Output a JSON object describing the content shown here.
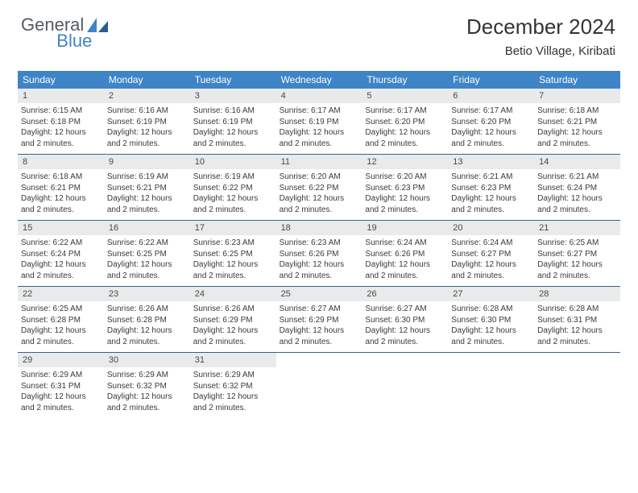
{
  "logo": {
    "main": "General",
    "accent": "Blue"
  },
  "title": "December 2024",
  "location": "Betio Village, Kiribati",
  "colors": {
    "header_bg": "#3e84c6",
    "daynum_bg": "#e9eaeb",
    "week_border": "#3e5f8a",
    "text": "#333333"
  },
  "day_labels": [
    "Sunday",
    "Monday",
    "Tuesday",
    "Wednesday",
    "Thursday",
    "Friday",
    "Saturday"
  ],
  "days": [
    {
      "n": 1,
      "sunrise": "6:15 AM",
      "sunset": "6:18 PM",
      "daylight": "12 hours and 2 minutes."
    },
    {
      "n": 2,
      "sunrise": "6:16 AM",
      "sunset": "6:19 PM",
      "daylight": "12 hours and 2 minutes."
    },
    {
      "n": 3,
      "sunrise": "6:16 AM",
      "sunset": "6:19 PM",
      "daylight": "12 hours and 2 minutes."
    },
    {
      "n": 4,
      "sunrise": "6:17 AM",
      "sunset": "6:19 PM",
      "daylight": "12 hours and 2 minutes."
    },
    {
      "n": 5,
      "sunrise": "6:17 AM",
      "sunset": "6:20 PM",
      "daylight": "12 hours and 2 minutes."
    },
    {
      "n": 6,
      "sunrise": "6:17 AM",
      "sunset": "6:20 PM",
      "daylight": "12 hours and 2 minutes."
    },
    {
      "n": 7,
      "sunrise": "6:18 AM",
      "sunset": "6:21 PM",
      "daylight": "12 hours and 2 minutes."
    },
    {
      "n": 8,
      "sunrise": "6:18 AM",
      "sunset": "6:21 PM",
      "daylight": "12 hours and 2 minutes."
    },
    {
      "n": 9,
      "sunrise": "6:19 AM",
      "sunset": "6:21 PM",
      "daylight": "12 hours and 2 minutes."
    },
    {
      "n": 10,
      "sunrise": "6:19 AM",
      "sunset": "6:22 PM",
      "daylight": "12 hours and 2 minutes."
    },
    {
      "n": 11,
      "sunrise": "6:20 AM",
      "sunset": "6:22 PM",
      "daylight": "12 hours and 2 minutes."
    },
    {
      "n": 12,
      "sunrise": "6:20 AM",
      "sunset": "6:23 PM",
      "daylight": "12 hours and 2 minutes."
    },
    {
      "n": 13,
      "sunrise": "6:21 AM",
      "sunset": "6:23 PM",
      "daylight": "12 hours and 2 minutes."
    },
    {
      "n": 14,
      "sunrise": "6:21 AM",
      "sunset": "6:24 PM",
      "daylight": "12 hours and 2 minutes."
    },
    {
      "n": 15,
      "sunrise": "6:22 AM",
      "sunset": "6:24 PM",
      "daylight": "12 hours and 2 minutes."
    },
    {
      "n": 16,
      "sunrise": "6:22 AM",
      "sunset": "6:25 PM",
      "daylight": "12 hours and 2 minutes."
    },
    {
      "n": 17,
      "sunrise": "6:23 AM",
      "sunset": "6:25 PM",
      "daylight": "12 hours and 2 minutes."
    },
    {
      "n": 18,
      "sunrise": "6:23 AM",
      "sunset": "6:26 PM",
      "daylight": "12 hours and 2 minutes."
    },
    {
      "n": 19,
      "sunrise": "6:24 AM",
      "sunset": "6:26 PM",
      "daylight": "12 hours and 2 minutes."
    },
    {
      "n": 20,
      "sunrise": "6:24 AM",
      "sunset": "6:27 PM",
      "daylight": "12 hours and 2 minutes."
    },
    {
      "n": 21,
      "sunrise": "6:25 AM",
      "sunset": "6:27 PM",
      "daylight": "12 hours and 2 minutes."
    },
    {
      "n": 22,
      "sunrise": "6:25 AM",
      "sunset": "6:28 PM",
      "daylight": "12 hours and 2 minutes."
    },
    {
      "n": 23,
      "sunrise": "6:26 AM",
      "sunset": "6:28 PM",
      "daylight": "12 hours and 2 minutes."
    },
    {
      "n": 24,
      "sunrise": "6:26 AM",
      "sunset": "6:29 PM",
      "daylight": "12 hours and 2 minutes."
    },
    {
      "n": 25,
      "sunrise": "6:27 AM",
      "sunset": "6:29 PM",
      "daylight": "12 hours and 2 minutes."
    },
    {
      "n": 26,
      "sunrise": "6:27 AM",
      "sunset": "6:30 PM",
      "daylight": "12 hours and 2 minutes."
    },
    {
      "n": 27,
      "sunrise": "6:28 AM",
      "sunset": "6:30 PM",
      "daylight": "12 hours and 2 minutes."
    },
    {
      "n": 28,
      "sunrise": "6:28 AM",
      "sunset": "6:31 PM",
      "daylight": "12 hours and 2 minutes."
    },
    {
      "n": 29,
      "sunrise": "6:29 AM",
      "sunset": "6:31 PM",
      "daylight": "12 hours and 2 minutes."
    },
    {
      "n": 30,
      "sunrise": "6:29 AM",
      "sunset": "6:32 PM",
      "daylight": "12 hours and 2 minutes."
    },
    {
      "n": 31,
      "sunrise": "6:29 AM",
      "sunset": "6:32 PM",
      "daylight": "12 hours and 2 minutes."
    }
  ],
  "labels": {
    "sunrise_prefix": "Sunrise: ",
    "sunset_prefix": "Sunset: ",
    "daylight_prefix": "Daylight: "
  }
}
